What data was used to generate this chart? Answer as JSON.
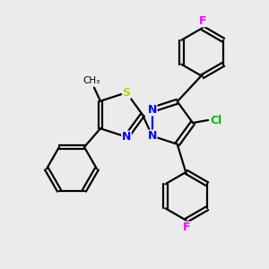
{
  "bg_color": "#ebebeb",
  "bond_color": "#000000",
  "atom_colors": {
    "N": "#0000ff",
    "S": "#cccc00",
    "Cl": "#00bb00",
    "F": "#ff00ff",
    "C": "#000000"
  },
  "lw": 1.6,
  "fs": 9.0
}
